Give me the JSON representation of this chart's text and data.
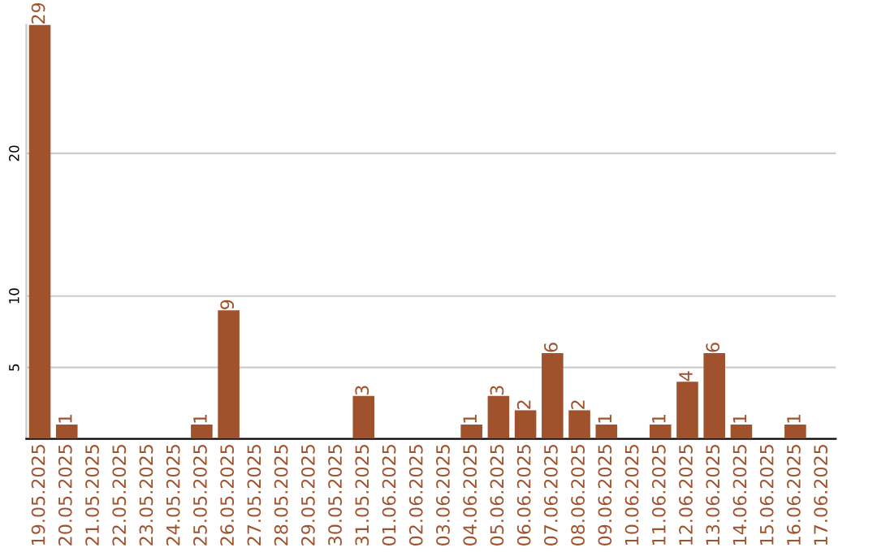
{
  "chart_data": {
    "type": "bar",
    "categories": [
      "19.05.2025",
      "20.05.2025",
      "21.05.2025",
      "22.05.2025",
      "23.05.2025",
      "24.05.2025",
      "25.05.2025",
      "26.05.2025",
      "27.05.2025",
      "28.05.2025",
      "29.05.2025",
      "30.05.2025",
      "31.05.2025",
      "01.06.2025",
      "02.06.2025",
      "03.06.2025",
      "04.06.2025",
      "05.06.2025",
      "06.06.2025",
      "07.06.2025",
      "08.06.2025",
      "09.06.2025",
      "10.06.2025",
      "11.06.2025",
      "12.06.2025",
      "13.06.2025",
      "14.06.2025",
      "15.06.2025",
      "16.06.2025",
      "17.06.2025"
    ],
    "values": [
      29,
      1,
      0,
      0,
      0,
      0,
      1,
      9,
      0,
      0,
      0,
      0,
      3,
      0,
      0,
      0,
      1,
      3,
      2,
      6,
      2,
      1,
      0,
      1,
      4,
      6,
      1,
      0,
      1,
      0
    ],
    "value_labels": [
      "29",
      "1",
      null,
      null,
      null,
      null,
      "1",
      "9",
      null,
      null,
      null,
      null,
      "3",
      null,
      null,
      null,
      "1",
      "3",
      "2",
      "6",
      "2",
      "1",
      null,
      "1",
      "4",
      "6",
      "1",
      null,
      "1",
      null
    ],
    "color": "#a0522d",
    "ylim": [
      0,
      29
    ],
    "yticks": [
      5,
      10,
      20
    ],
    "grid": "y",
    "legend": false
  }
}
